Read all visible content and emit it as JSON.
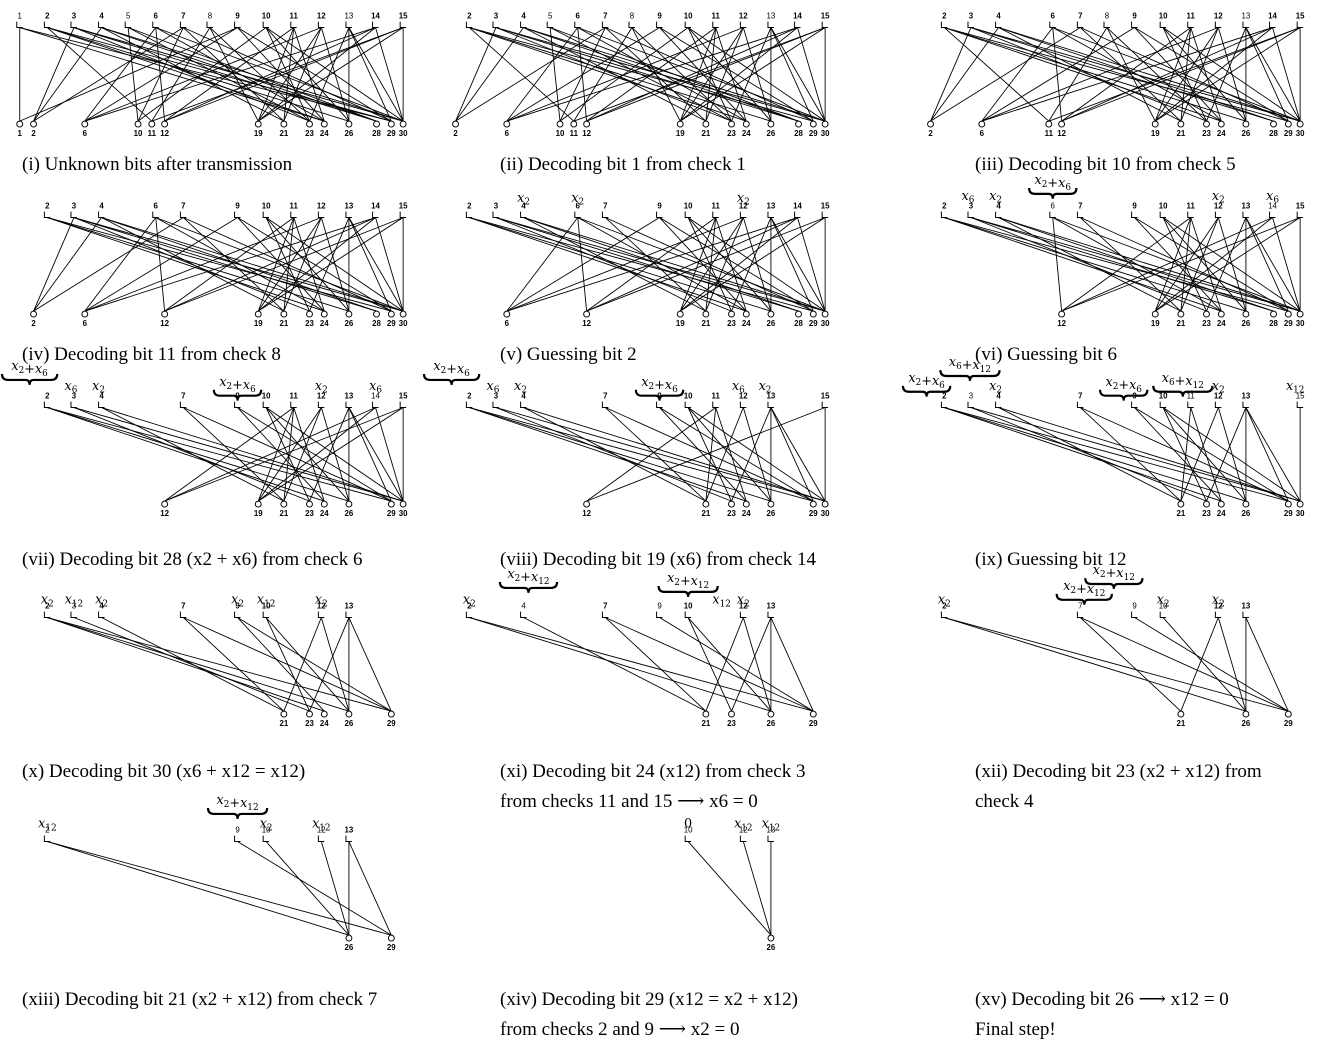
{
  "figure": {
    "panels": [
      {
        "id": "i",
        "caption": [
          "(i) Unknown bits after transmission"
        ],
        "checks": [
          {
            "n": "1",
            "w": "light"
          },
          {
            "n": "2"
          },
          {
            "n": "3"
          },
          {
            "n": "4"
          },
          {
            "n": "5",
            "w": "light"
          },
          {
            "n": "6"
          },
          {
            "n": "7"
          },
          {
            "n": "8",
            "w": "light"
          },
          {
            "n": "9"
          },
          {
            "n": "10"
          },
          {
            "n": "11"
          },
          {
            "n": "12"
          },
          {
            "n": "13",
            "w": "light"
          },
          {
            "n": "14"
          },
          {
            "n": "15"
          }
        ],
        "bits": [
          "1",
          "2",
          "6",
          "10",
          "11",
          "12",
          "19",
          "21",
          "23",
          "24",
          "26",
          "28",
          "29",
          "30"
        ],
        "annotations": []
      },
      {
        "id": "ii",
        "caption": [
          "(ii) Decoding bit 1 from check 1"
        ],
        "checks": [
          {
            "n": "2"
          },
          {
            "n": "3"
          },
          {
            "n": "4"
          },
          {
            "n": "5",
            "w": "light"
          },
          {
            "n": "6"
          },
          {
            "n": "7"
          },
          {
            "n": "8",
            "w": "light"
          },
          {
            "n": "9"
          },
          {
            "n": "10"
          },
          {
            "n": "11"
          },
          {
            "n": "12"
          },
          {
            "n": "13",
            "w": "light"
          },
          {
            "n": "14"
          },
          {
            "n": "15"
          }
        ],
        "bits": [
          "2",
          "6",
          "10",
          "11",
          "12",
          "19",
          "21",
          "23",
          "24",
          "26",
          "28",
          "29",
          "30"
        ],
        "annotations": []
      },
      {
        "id": "iii",
        "caption": [
          "(iii) Decoding bit 10 from check 5"
        ],
        "checks": [
          {
            "n": "2"
          },
          {
            "n": "3"
          },
          {
            "n": "4"
          },
          {
            "n": "6"
          },
          {
            "n": "7"
          },
          {
            "n": "8",
            "w": "light"
          },
          {
            "n": "9"
          },
          {
            "n": "10"
          },
          {
            "n": "11"
          },
          {
            "n": "12"
          },
          {
            "n": "13",
            "w": "light"
          },
          {
            "n": "14"
          },
          {
            "n": "15"
          }
        ],
        "bits": [
          "2",
          "6",
          "11",
          "12",
          "19",
          "21",
          "23",
          "24",
          "26",
          "28",
          "29",
          "30"
        ],
        "annotations": []
      },
      {
        "id": "iv",
        "caption": [
          "(iv) Decoding bit 11 from check 8"
        ],
        "checks": [
          {
            "n": "2"
          },
          {
            "n": "3"
          },
          {
            "n": "4"
          },
          {
            "n": "6"
          },
          {
            "n": "7"
          },
          {
            "n": "9"
          },
          {
            "n": "10"
          },
          {
            "n": "11"
          },
          {
            "n": "12"
          },
          {
            "n": "13"
          },
          {
            "n": "14"
          },
          {
            "n": "15"
          }
        ],
        "bits": [
          "2",
          "6",
          "12",
          "19",
          "21",
          "23",
          "24",
          "26",
          "28",
          "29",
          "30"
        ],
        "annotations": []
      },
      {
        "id": "v",
        "caption": [
          "(v) Guessing bit 2"
        ],
        "checks": [
          {
            "n": "2"
          },
          {
            "n": "3"
          },
          {
            "n": "4"
          },
          {
            "n": "6"
          },
          {
            "n": "7"
          },
          {
            "n": "9"
          },
          {
            "n": "10"
          },
          {
            "n": "11"
          },
          {
            "n": "12"
          },
          {
            "n": "13"
          },
          {
            "n": "14"
          },
          {
            "n": "15"
          }
        ],
        "bits": [
          "6",
          "12",
          "19",
          "21",
          "23",
          "24",
          "26",
          "28",
          "29",
          "30"
        ],
        "annotations": [
          "x2",
          "x2",
          "x2"
        ]
      },
      {
        "id": "vi",
        "caption": [
          "(vi) Guessing bit 6"
        ],
        "checks": [
          {
            "n": "2"
          },
          {
            "n": "3"
          },
          {
            "n": "4"
          },
          {
            "n": "6",
            "w": "light"
          },
          {
            "n": "7"
          },
          {
            "n": "9"
          },
          {
            "n": "10"
          },
          {
            "n": "11"
          },
          {
            "n": "12"
          },
          {
            "n": "13"
          },
          {
            "n": "14",
            "w": "light"
          },
          {
            "n": "15"
          }
        ],
        "bits": [
          "12",
          "19",
          "21",
          "23",
          "24",
          "26",
          "28",
          "29",
          "30"
        ],
        "annotations": [
          "x6",
          "x2",
          "x2+x6",
          "x2",
          "x6"
        ]
      },
      {
        "id": "vii",
        "caption": [
          "(vii) Decoding bit 28 (x2 + x6) from check 6"
        ],
        "checks": [
          {
            "n": "2"
          },
          {
            "n": "3"
          },
          {
            "n": "4"
          },
          {
            "n": "7"
          },
          {
            "n": "9"
          },
          {
            "n": "10"
          },
          {
            "n": "11"
          },
          {
            "n": "12"
          },
          {
            "n": "13"
          },
          {
            "n": "14",
            "w": "light"
          },
          {
            "n": "15"
          }
        ],
        "bits": [
          "12",
          "19",
          "21",
          "23",
          "24",
          "26",
          "29",
          "30"
        ],
        "annotations": [
          "x2+x6",
          "x6",
          "x2",
          "x2+x6",
          "x2",
          "x6"
        ]
      },
      {
        "id": "viii",
        "caption": [
          "(viii) Decoding bit 19 (x6) from check 14"
        ],
        "checks": [
          {
            "n": "2"
          },
          {
            "n": "3"
          },
          {
            "n": "4"
          },
          {
            "n": "7"
          },
          {
            "n": "9"
          },
          {
            "n": "10"
          },
          {
            "n": "11"
          },
          {
            "n": "12"
          },
          {
            "n": "13"
          },
          {
            "n": "15"
          }
        ],
        "bits": [
          "12",
          "21",
          "23",
          "24",
          "26",
          "29",
          "30"
        ],
        "annotations": [
          "x2+x6",
          "x6",
          "x2",
          "x2+x6",
          "x6",
          "x2"
        ]
      },
      {
        "id": "ix",
        "caption": [
          "(ix) Guessing bit 12"
        ],
        "checks": [
          {
            "n": "2"
          },
          {
            "n": "3",
            "w": "light"
          },
          {
            "n": "4"
          },
          {
            "n": "7"
          },
          {
            "n": "9"
          },
          {
            "n": "10"
          },
          {
            "n": "11",
            "w": "light"
          },
          {
            "n": "12"
          },
          {
            "n": "13"
          },
          {
            "n": "15",
            "w": "light"
          }
        ],
        "bits": [
          "21",
          "23",
          "24",
          "26",
          "29",
          "30"
        ],
        "annotations": [
          "x6+x12",
          "x2+x6",
          "x2",
          "x2+x6",
          "x6+x12",
          "x2",
          "x12"
        ]
      },
      {
        "id": "x",
        "caption": [
          "(x) Decoding bit 30 (x6 + x12 = x12)"
        ],
        "checks": [
          {
            "n": "2"
          },
          {
            "n": "3",
            "w": "light"
          },
          {
            "n": "4"
          },
          {
            "n": "7"
          },
          {
            "n": "9"
          },
          {
            "n": "10"
          },
          {
            "n": "12"
          },
          {
            "n": "13"
          }
        ],
        "bits": [
          "21",
          "23",
          "24",
          "26",
          "29"
        ],
        "annotations": [
          "x2",
          "x12",
          "x2",
          "x2",
          "x12",
          "x2"
        ]
      },
      {
        "id": "xi",
        "caption": [
          "(xi) Decoding bit 24 (x12) from check 3",
          "from checks 11 and 15 ⟶ x6 = 0"
        ],
        "checks": [
          {
            "n": "2"
          },
          {
            "n": "4",
            "w": "light"
          },
          {
            "n": "7"
          },
          {
            "n": "9",
            "w": "light"
          },
          {
            "n": "10"
          },
          {
            "n": "12"
          },
          {
            "n": "13"
          }
        ],
        "bits": [
          "21",
          "23",
          "26",
          "29"
        ],
        "annotations": [
          "x2",
          "x2+x12",
          "x2+x12",
          "x12",
          "x2"
        ]
      },
      {
        "id": "xii",
        "caption": [
          "(xii) Decoding bit 23 (x2 + x12) from",
          "check 4"
        ],
        "checks": [
          {
            "n": "2"
          },
          {
            "n": "7",
            "w": "light"
          },
          {
            "n": "9",
            "w": "light"
          },
          {
            "n": "10",
            "w": "light"
          },
          {
            "n": "12"
          },
          {
            "n": "13"
          }
        ],
        "bits": [
          "21",
          "26",
          "29"
        ],
        "annotations": [
          "x2",
          "x2+x12",
          "x2+x12",
          "x2",
          "x2"
        ]
      },
      {
        "id": "xiii",
        "caption": [
          "(xiii) Decoding bit 21 (x2 + x12) from check 7"
        ],
        "checks": [
          {
            "n": "2",
            "w": "light"
          },
          {
            "n": "9",
            "w": "light"
          },
          {
            "n": "10",
            "w": "light"
          },
          {
            "n": "12",
            "w": "light"
          },
          {
            "n": "13"
          }
        ],
        "bits": [
          "26",
          "29"
        ],
        "annotations": [
          "x12",
          "x2+x12",
          "x2",
          "x12"
        ]
      },
      {
        "id": "xiv",
        "caption": [
          "(xiv) Decoding bit 29 (x12 = x2 + x12)",
          "from checks 2 and 9 ⟶ x2 = 0"
        ],
        "checks": [
          {
            "n": "10",
            "w": "light"
          },
          {
            "n": "12",
            "w": "light"
          },
          {
            "n": "13",
            "w": "light"
          }
        ],
        "bits": [
          "26"
        ],
        "annotations": [
          "0",
          "x12",
          "x12"
        ]
      },
      {
        "id": "xv",
        "caption": [
          "(xv) Decoding bit 26 ⟶ x12 = 0",
          "Final step!"
        ],
        "checks": [],
        "bits": [],
        "annotations": []
      }
    ]
  }
}
